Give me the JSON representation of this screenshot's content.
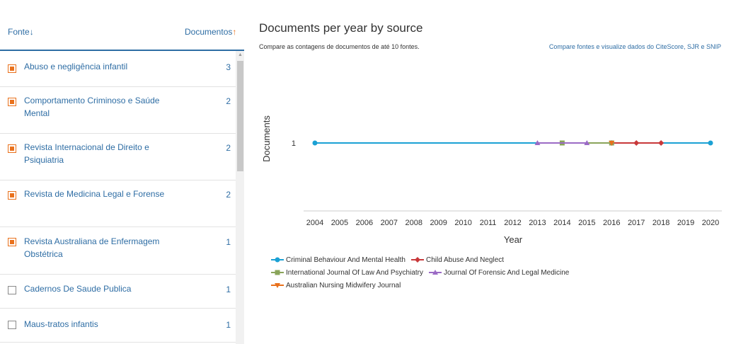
{
  "sidebar": {
    "col_source_label": "Fonte",
    "col_source_arrow": "↓",
    "col_docs_label": "Documentos",
    "col_docs_arrow": "↑",
    "rows": [
      {
        "label": "Abuso e negligência infantil",
        "count": "3",
        "checked": true
      },
      {
        "label": "Comportamento Criminoso e Saúde Mental",
        "count": "2",
        "checked": true
      },
      {
        "label": "Revista Internacional de Direito e Psiquiatria",
        "count": "2",
        "checked": true
      },
      {
        "label": "Revista de Medicina Legal e Forense",
        "count": "2",
        "checked": true
      },
      {
        "label": "Revista Australiana de Enfermagem Obstétrica",
        "count": "1",
        "checked": true
      },
      {
        "label": "Cadernos De Saude Publica",
        "count": "1",
        "checked": false
      },
      {
        "label": "Maus-tratos infantis",
        "count": "1",
        "checked": false
      }
    ]
  },
  "header": {
    "title": "Documents per year by source",
    "subtitle": "Compare as contagens de documentos de até 10 fontes.",
    "compare_link": "Compare fontes e visualize dados do CiteScore, SJR e SNIP"
  },
  "colors": {
    "link": "#2e6da4",
    "accent": "#e9711c"
  },
  "chart_data": {
    "type": "line",
    "ylabel": "Documents",
    "xlabel": "Year",
    "x": [
      2004,
      2005,
      2006,
      2007,
      2008,
      2009,
      2010,
      2011,
      2012,
      2013,
      2014,
      2015,
      2016,
      2017,
      2018,
      2019,
      2020
    ],
    "yticks": [
      1
    ],
    "grid": false,
    "legend_position": "bottom",
    "series": [
      {
        "name": "Criminal Behaviour And Mental Health",
        "color": "#1ba1d4",
        "marker": "circle",
        "points": [
          [
            2004,
            1
          ],
          [
            2020,
            1
          ]
        ]
      },
      {
        "name": "Child Abuse And Neglect",
        "color": "#c8383a",
        "marker": "diamond",
        "points": [
          [
            2016,
            1
          ],
          [
            2017,
            1
          ],
          [
            2018,
            1
          ]
        ]
      },
      {
        "name": "International Journal Of Law And Psychiatry",
        "color": "#8aa45a",
        "marker": "square",
        "points": [
          [
            2014,
            1
          ],
          [
            2016,
            1
          ]
        ]
      },
      {
        "name": "Journal Of Forensic And Legal Medicine",
        "color": "#9b6bc5",
        "marker": "triangle",
        "points": [
          [
            2013,
            1
          ],
          [
            2015,
            1
          ]
        ]
      },
      {
        "name": "Australian Nursing Midwifery Journal",
        "color": "#e9711c",
        "marker": "triangle-down",
        "points": [
          [
            2016,
            1
          ]
        ]
      }
    ]
  }
}
